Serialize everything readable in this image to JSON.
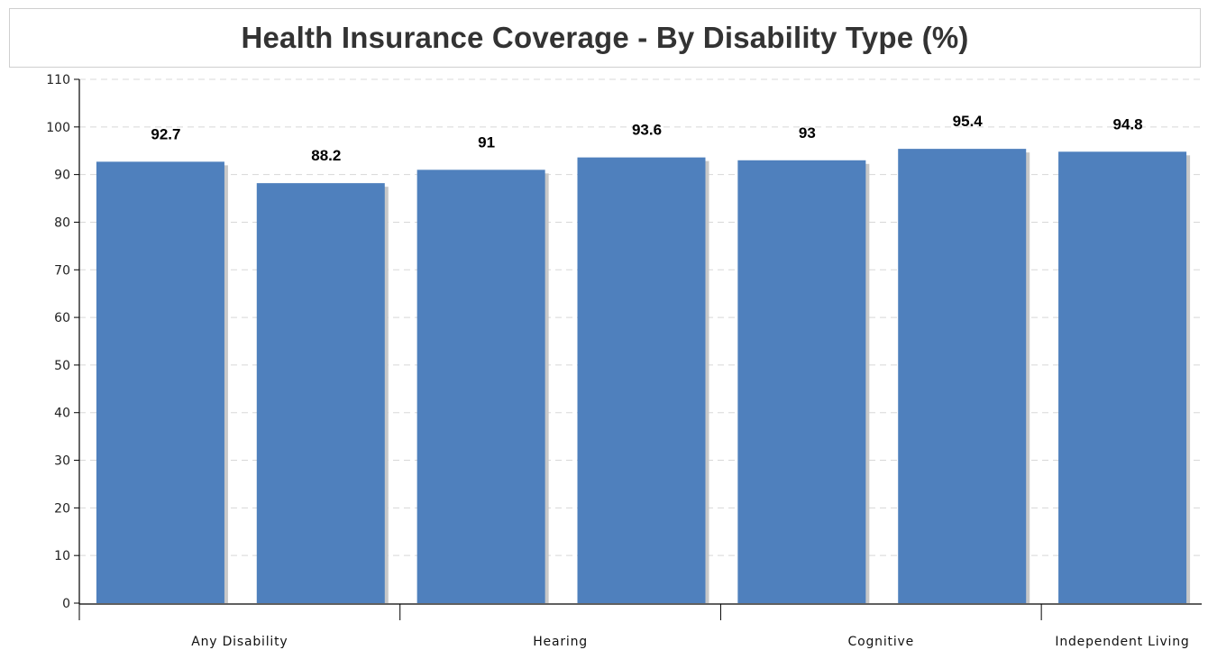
{
  "chart_data": {
    "type": "bar",
    "title": "Health Insurance Coverage - By Disability Type (%)",
    "xlabel": "",
    "ylabel": "",
    "categories": [
      "Any Disability",
      "",
      "Hearing",
      "",
      "Cognitive",
      "",
      "Independent Living"
    ],
    "values": [
      92.7,
      88.2,
      91,
      93.6,
      93,
      95.4,
      94.8
    ],
    "value_labels": [
      "92.7",
      "88.2",
      "91",
      "93.6",
      "93",
      "95.4",
      "94.8"
    ],
    "ylim": [
      0,
      110
    ],
    "yticks": [
      0,
      10,
      20,
      30,
      40,
      50,
      60,
      70,
      80,
      90,
      100,
      110
    ],
    "grid": true,
    "legend": "none",
    "colors": {
      "bar": "#4f80bd",
      "bar_shadow": "#c8c8c8",
      "grid": "#d8d8d8",
      "axis": "#000000"
    }
  }
}
